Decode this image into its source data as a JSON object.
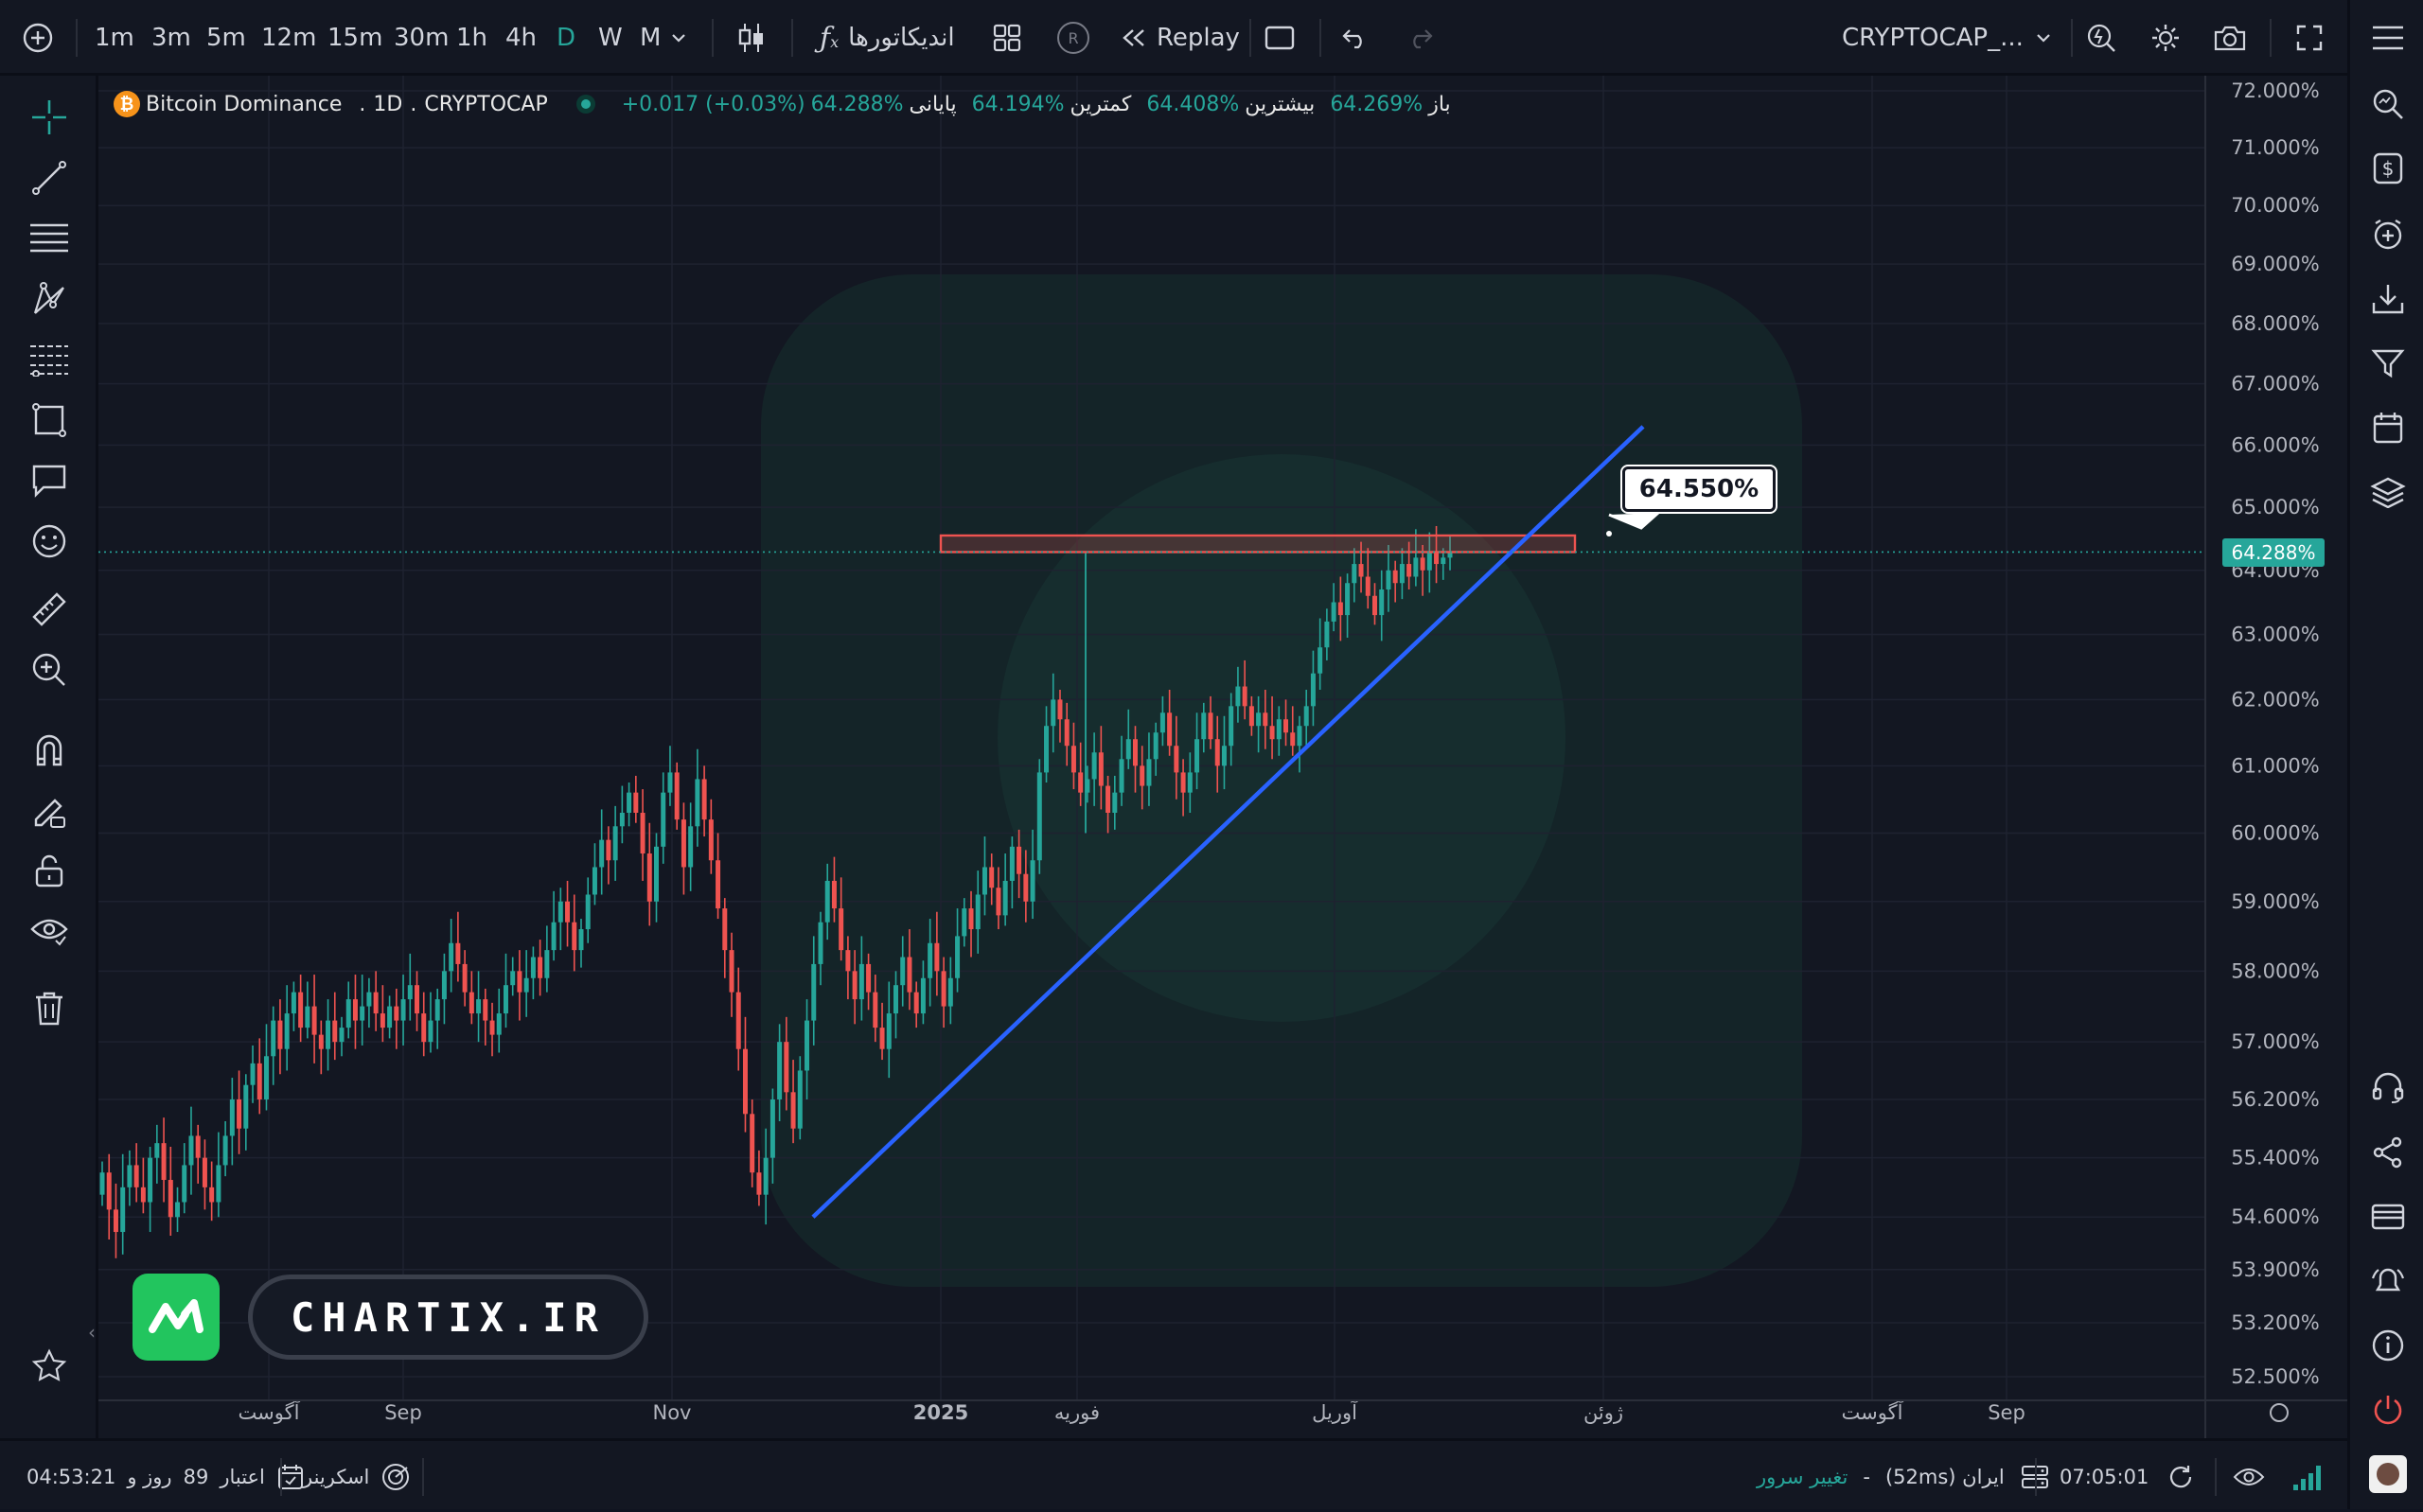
{
  "toolbar": {
    "intervals": [
      "1m",
      "3m",
      "5m",
      "12m",
      "15m",
      "30m",
      "1h",
      "4h",
      "D",
      "W",
      "M"
    ],
    "active_interval": "D",
    "indicators_label": "اندیکاتورها",
    "replay_label": "Replay",
    "symbol_label": "CRYPTOCAP_...",
    "accent_color": "#26a69a"
  },
  "legend": {
    "symbol_name": "Bitcoin Dominance",
    "interval": "1D",
    "exchange": "CRYPTOCAP",
    "open_label": "باز",
    "open_value": "64.269%",
    "high_label": "بیشترین",
    "high_value": "64.408%",
    "low_label": "کمترین",
    "low_value": "64.194%",
    "close_label": "پایانی",
    "close_value": "64.288%",
    "change_value": "+0.017 (+0.03%)"
  },
  "price_scale": {
    "labels": [
      "72.000%",
      "71.000%",
      "70.000%",
      "69.000%",
      "68.000%",
      "67.000%",
      "66.000%",
      "65.000%",
      "64.000%",
      "63.000%",
      "62.000%",
      "61.000%",
      "60.000%",
      "59.000%",
      "58.000%",
      "57.000%",
      "56.200%",
      "55.400%",
      "54.600%",
      "53.900%",
      "53.200%",
      "52.500%"
    ],
    "last_price_tag": "64.288%"
  },
  "time_scale": {
    "labels": [
      "آگوست",
      "Sep",
      "Nov",
      "2025",
      "فوریه",
      "آوریل",
      "ژوئن",
      "آگوست",
      "Sep"
    ]
  },
  "callout": {
    "text": "64.550%"
  },
  "watermark": {
    "text": "CHARTIX.IR"
  },
  "bottombar": {
    "countdown": "04:53:21",
    "credit_value": "89",
    "credit_text": "روز و",
    "credit_label": "اعتبار",
    "screener_label": "اسکرینر",
    "change_server_label": "تغییر سرور",
    "server_dash": "-",
    "server_label": "ایران (52ms)",
    "clock": "07:05:01"
  },
  "chart_data": {
    "type": "candlestick",
    "title": "Bitcoin Dominance",
    "interval": "1D",
    "ylim": [
      52.5,
      72.0
    ],
    "y_scale": "log",
    "last_close": 64.288,
    "support_trendline": {
      "start_value": 54.6,
      "end_value": 66.3
    },
    "resistance_zone": {
      "low": 64.288,
      "high": 64.55
    },
    "series_up_color": "#26a69a",
    "series_down_color": "#ef5350",
    "closes": [
      55.2,
      54.7,
      54.4,
      55.0,
      55.3,
      55.0,
      54.8,
      55.4,
      55.6,
      55.1,
      54.6,
      54.8,
      55.3,
      55.7,
      55.4,
      55.0,
      54.8,
      55.3,
      55.7,
      56.2,
      55.8,
      56.4,
      56.7,
      56.2,
      56.8,
      57.3,
      56.9,
      57.4,
      57.7,
      57.2,
      57.5,
      57.1,
      56.9,
      57.3,
      57.0,
      57.2,
      57.6,
      57.3,
      57.5,
      57.7,
      57.4,
      57.2,
      57.5,
      57.3,
      57.6,
      57.8,
      57.4,
      57.0,
      57.3,
      57.6,
      58.0,
      58.4,
      58.1,
      57.7,
      57.4,
      57.6,
      57.3,
      57.1,
      57.4,
      57.8,
      58.0,
      57.7,
      57.9,
      58.2,
      57.9,
      58.3,
      58.7,
      59.0,
      58.7,
      58.3,
      58.6,
      59.1,
      59.5,
      59.9,
      59.6,
      60.1,
      60.3,
      60.6,
      60.3,
      59.7,
      59.0,
      59.8,
      60.6,
      60.9,
      60.2,
      59.5,
      60.1,
      60.8,
      60.2,
      59.6,
      58.9,
      58.3,
      57.7,
      56.9,
      56.0,
      55.2,
      54.9,
      55.4,
      56.2,
      57.0,
      56.3,
      55.8,
      56.6,
      57.3,
      58.1,
      58.7,
      59.3,
      58.9,
      58.3,
      58.0,
      57.6,
      58.1,
      57.7,
      57.2,
      56.9,
      57.4,
      57.8,
      58.2,
      57.7,
      57.4,
      57.9,
      58.4,
      58.0,
      57.5,
      57.9,
      58.5,
      58.9,
      58.6,
      59.1,
      59.5,
      59.2,
      58.8,
      59.3,
      59.8,
      59.4,
      59.0,
      59.6,
      60.9,
      61.6,
      62.0,
      61.7,
      61.3,
      60.9,
      60.6,
      60.8,
      61.2,
      60.7,
      60.3,
      60.6,
      61.1,
      61.4,
      61.0,
      60.7,
      61.1,
      61.5,
      61.8,
      61.3,
      60.9,
      60.6,
      60.9,
      61.4,
      61.8,
      61.4,
      61.0,
      61.3,
      61.9,
      62.2,
      61.9,
      61.6,
      61.8,
      61.6,
      61.4,
      61.7,
      61.5,
      61.3,
      61.6,
      61.9,
      62.4,
      62.8,
      63.2,
      63.5,
      63.3,
      63.8,
      64.1,
      63.9,
      63.6,
      63.3,
      63.7,
      64.0,
      63.8,
      64.1,
      63.9,
      64.2,
      64.0,
      64.3,
      64.1,
      64.2,
      64.288
    ]
  }
}
